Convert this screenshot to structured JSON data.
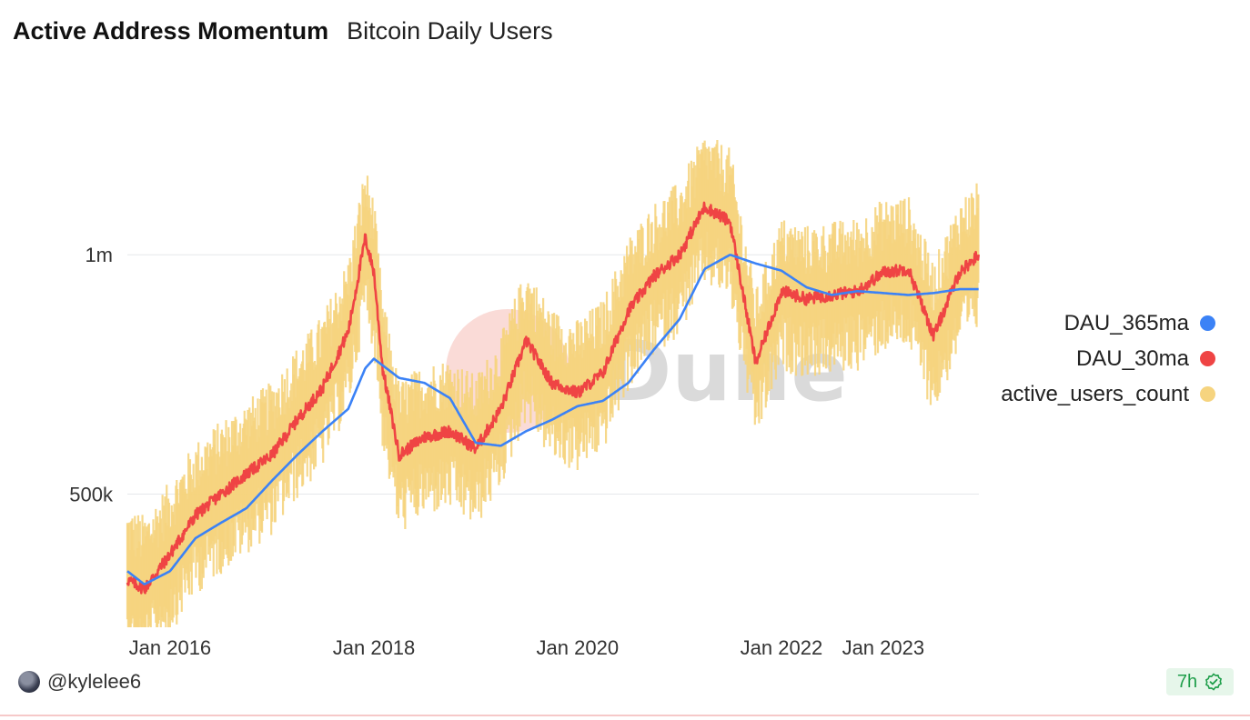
{
  "header": {
    "title": "Active Address Momentum",
    "subtitle": "Bitcoin Daily Users"
  },
  "footer": {
    "username": "@kylelee6",
    "age_badge": "7h"
  },
  "colors": {
    "dau_365ma": "#3b82f6",
    "dau_30ma": "#ef4444",
    "active_users": "#f6d47f",
    "watermark": "Dune"
  },
  "chart_data": {
    "type": "line",
    "title": "",
    "xlabel": "",
    "ylabel": "",
    "x_ticks": [
      "Jan 2016",
      "Jan 2018",
      "Jan 2020",
      "Jan 2022",
      "Jan 2023"
    ],
    "y_ticks": [
      "500k",
      "1m"
    ],
    "y_tick_values": [
      500000,
      1000000
    ],
    "y_scale": "log",
    "ylim": [
      340000,
      1650000
    ],
    "xlim": [
      "2015-08-01",
      "2023-12-10"
    ],
    "grid": "horizontal",
    "legend_position": "right",
    "series": [
      {
        "name": "DAU_365ma",
        "x": [
          "2015-08-01",
          "2015-10-01",
          "2016-01-01",
          "2016-04-01",
          "2016-07-01",
          "2016-10-01",
          "2017-01-01",
          "2017-04-01",
          "2017-07-01",
          "2017-10-01",
          "2017-12-01",
          "2018-01-01",
          "2018-04-01",
          "2018-07-01",
          "2018-10-01",
          "2019-01-01",
          "2019-04-01",
          "2019-07-01",
          "2019-10-01",
          "2020-01-01",
          "2020-04-01",
          "2020-07-01",
          "2020-10-01",
          "2021-01-01",
          "2021-04-01",
          "2021-07-01",
          "2021-10-01",
          "2022-01-01",
          "2022-04-01",
          "2022-07-01",
          "2022-10-01",
          "2023-01-01",
          "2023-04-01",
          "2023-07-01",
          "2023-10-01",
          "2023-12-10"
        ],
        "values": [
          400000,
          385000,
          400000,
          440000,
          460000,
          480000,
          520000,
          560000,
          600000,
          640000,
          720000,
          740000,
          700000,
          690000,
          660000,
          580000,
          575000,
          600000,
          620000,
          645000,
          655000,
          690000,
          760000,
          830000,
          960000,
          1000000,
          975000,
          955000,
          910000,
          890000,
          900000,
          895000,
          890000,
          895000,
          905000,
          905000
        ]
      },
      {
        "name": "DAU_30ma",
        "x": [
          "2015-08-01",
          "2015-10-01",
          "2016-01-01",
          "2016-04-01",
          "2016-07-01",
          "2016-10-01",
          "2017-01-01",
          "2017-04-01",
          "2017-07-01",
          "2017-10-01",
          "2017-12-01",
          "2018-01-01",
          "2018-02-01",
          "2018-04-01",
          "2018-07-01",
          "2018-10-01",
          "2019-01-01",
          "2019-04-01",
          "2019-07-01",
          "2019-10-01",
          "2020-01-01",
          "2020-04-01",
          "2020-07-01",
          "2020-10-01",
          "2021-01-01",
          "2021-04-01",
          "2021-07-01",
          "2021-10-01",
          "2022-01-01",
          "2022-04-01",
          "2022-07-01",
          "2022-10-01",
          "2023-01-01",
          "2023-04-01",
          "2023-07-01",
          "2023-10-01",
          "2023-12-10"
        ],
        "values": [
          390000,
          380000,
          420000,
          470000,
          500000,
          530000,
          560000,
          620000,
          680000,
          800000,
          1050000,
          950000,
          720000,
          560000,
          590000,
          600000,
          570000,
          640000,
          780000,
          690000,
          670000,
          710000,
          850000,
          940000,
          1000000,
          1150000,
          1100000,
          730000,
          900000,
          880000,
          890000,
          900000,
          950000,
          960000,
          790000,
          950000,
          1000000
        ]
      },
      {
        "name": "active_users_count",
        "x": [
          "2015-08-01",
          "2015-10-01",
          "2016-01-01",
          "2016-04-01",
          "2016-07-01",
          "2016-10-01",
          "2017-01-01",
          "2017-04-01",
          "2017-07-01",
          "2017-10-01",
          "2017-12-01",
          "2018-01-01",
          "2018-02-01",
          "2018-04-01",
          "2018-07-01",
          "2018-10-01",
          "2019-01-01",
          "2019-04-01",
          "2019-07-01",
          "2019-10-01",
          "2020-01-01",
          "2020-04-01",
          "2020-07-01",
          "2020-10-01",
          "2021-01-01",
          "2021-04-01",
          "2021-07-01",
          "2021-10-01",
          "2022-01-01",
          "2022-04-01",
          "2022-07-01",
          "2022-10-01",
          "2023-01-01",
          "2023-04-01",
          "2023-07-01",
          "2023-10-01",
          "2023-12-10"
        ],
        "values": [
          390000,
          380000,
          420000,
          470000,
          500000,
          530000,
          560000,
          620000,
          680000,
          800000,
          1050000,
          950000,
          720000,
          560000,
          590000,
          600000,
          570000,
          640000,
          780000,
          690000,
          670000,
          710000,
          850000,
          940000,
          1000000,
          1150000,
          1100000,
          730000,
          900000,
          880000,
          890000,
          900000,
          950000,
          960000,
          790000,
          950000,
          1000000
        ],
        "noise": 0.16
      }
    ]
  }
}
